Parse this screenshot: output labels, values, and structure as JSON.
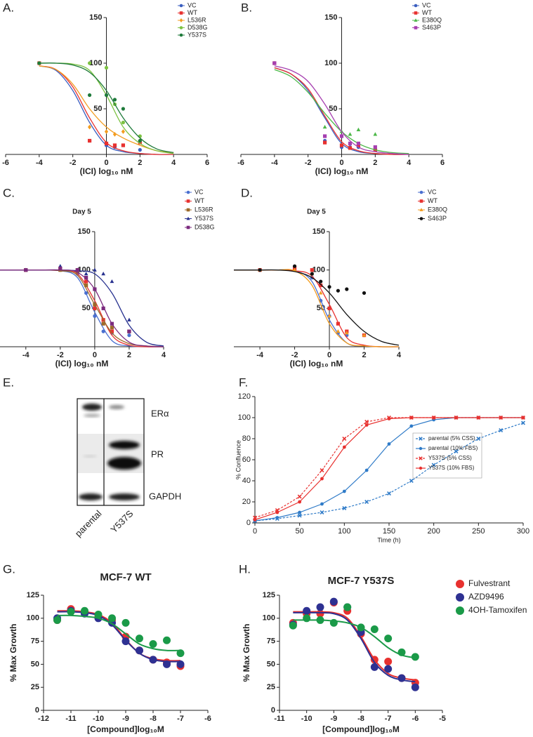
{
  "chart_data": [
    {
      "type": "scatter",
      "panel_label": "A.",
      "x_label": "(ICI) log₁₀ nM",
      "xlim": [
        -6,
        6
      ],
      "ylim": [
        0,
        150
      ],
      "xticks": [
        -6,
        -4,
        -2,
        0,
        2,
        4,
        6
      ],
      "yticks": [
        50,
        100,
        150
      ],
      "legend": "top-right",
      "x": [
        -4,
        -1,
        0,
        0.5,
        1,
        2
      ],
      "fit_x": [
        -4,
        -3,
        -2,
        -1,
        0,
        1,
        2,
        3,
        4
      ],
      "series": [
        {
          "name": "VC",
          "color": "#3b5fc0",
          "marker": "circle",
          "values": [
            100,
            15,
            10,
            8,
            10,
            5
          ],
          "fit": [
            97,
            92,
            70,
            35,
            10,
            3,
            1,
            0,
            0
          ]
        },
        {
          "name": "WT",
          "color": "#e8312f",
          "marker": "square",
          "values": [
            100,
            15,
            12,
            10,
            10,
            13
          ],
          "fit": [
            97,
            93,
            74,
            40,
            13,
            4,
            1,
            0,
            0
          ]
        },
        {
          "name": "L536R",
          "color": "#f39c1f",
          "marker": "diamond",
          "values": [
            100,
            30,
            25,
            22,
            25,
            15
          ],
          "fit": [
            97,
            93,
            77,
            50,
            30,
            18,
            10,
            4,
            2
          ]
        },
        {
          "name": "D538G",
          "color": "#7cc242",
          "marker": "circle",
          "values": [
            100,
            100,
            95,
            55,
            35,
            20
          ],
          "fit": [
            100,
            100,
            99,
            92,
            65,
            30,
            12,
            4,
            1
          ]
        },
        {
          "name": "Y537S",
          "color": "#1e7a3a",
          "marker": "circle",
          "values": [
            100,
            65,
            65,
            60,
            50,
            15
          ],
          "fit": [
            100,
            100,
            98,
            90,
            70,
            40,
            18,
            6,
            2
          ]
        }
      ]
    },
    {
      "type": "scatter",
      "panel_label": "B.",
      "x_label": "(ICI) log₁₀ nM",
      "xlim": [
        -6,
        6
      ],
      "ylim": [
        0,
        150
      ],
      "xticks": [
        -6,
        -4,
        -2,
        0,
        2,
        4,
        6
      ],
      "yticks": [
        50,
        100,
        150
      ],
      "legend": "top-right",
      "x": [
        -4,
        -1,
        0,
        0.5,
        1,
        2
      ],
      "fit_x": [
        -4,
        -3,
        -2,
        -1,
        0,
        1,
        2,
        3,
        4
      ],
      "series": [
        {
          "name": "VC",
          "color": "#3b5fc0",
          "marker": "circle",
          "values": [
            100,
            15,
            8,
            8,
            8,
            5
          ],
          "fit": [
            95,
            88,
            70,
            40,
            12,
            3,
            1,
            0,
            0
          ]
        },
        {
          "name": "WT",
          "color": "#e8312f",
          "marker": "square",
          "values": [
            100,
            13,
            10,
            7,
            10,
            5
          ],
          "fit": [
            95,
            88,
            72,
            42,
            14,
            4,
            1,
            0,
            0
          ]
        },
        {
          "name": "E380Q",
          "color": "#4cb848",
          "marker": "triangle",
          "values": [
            100,
            30,
            25,
            22,
            27,
            22
          ],
          "fit": [
            93,
            85,
            68,
            45,
            25,
            12,
            5,
            2,
            1
          ]
        },
        {
          "name": "S463P",
          "color": "#a63fb0",
          "marker": "square",
          "values": [
            100,
            20,
            20,
            12,
            12,
            8
          ],
          "fit": [
            97,
            92,
            80,
            55,
            25,
            8,
            3,
            1,
            0
          ]
        }
      ]
    },
    {
      "type": "scatter",
      "panel_label": "C.",
      "title": "Day 5",
      "x_label": "(ICI) log₁₀ nM",
      "xlim": [
        -5.5,
        4
      ],
      "ylim": [
        0,
        150
      ],
      "xticks": [
        -4,
        -2,
        0,
        2,
        4
      ],
      "yticks": [
        50,
        100,
        150
      ],
      "legend": "top-right",
      "x": [
        -4,
        -2,
        -1,
        -0.5,
        0,
        0.5,
        1,
        2
      ],
      "fit_x": [
        -5.5,
        -4,
        -3,
        -2,
        -1,
        0,
        1,
        2,
        3,
        4
      ],
      "series": [
        {
          "name": "VC",
          "color": "#4a6fd0",
          "marker": "circle",
          "values": [
            100,
            100,
            95,
            70,
            40,
            20,
            18,
            15
          ],
          "fit": [
            100,
            100,
            100,
            99,
            90,
            45,
            8,
            1,
            0,
            0
          ]
        },
        {
          "name": "WT",
          "color": "#e8312f",
          "marker": "square",
          "values": [
            100,
            102,
            100,
            85,
            50,
            35,
            20,
            20
          ],
          "fit": [
            100,
            100,
            100,
            99,
            95,
            60,
            15,
            2,
            0,
            0
          ]
        },
        {
          "name": "L536R",
          "color": "#9c6a2a",
          "marker": "square",
          "values": [
            100,
            100,
            98,
            80,
            55,
            30,
            25,
            20
          ],
          "fit": [
            100,
            100,
            100,
            99,
            93,
            55,
            18,
            4,
            1,
            0
          ]
        },
        {
          "name": "Y537S",
          "color": "#27318f",
          "marker": "triangle",
          "values": [
            100,
            105,
            100,
            95,
            100,
            95,
            85,
            35
          ],
          "fit": [
            100,
            100,
            100,
            100,
            99,
            95,
            70,
            28,
            6,
            1
          ]
        },
        {
          "name": "D538G",
          "color": "#7b2a7e",
          "marker": "square",
          "values": [
            100,
            102,
            100,
            90,
            75,
            50,
            30,
            20
          ],
          "fit": [
            100,
            100,
            100,
            100,
            97,
            75,
            30,
            6,
            1,
            0
          ]
        }
      ]
    },
    {
      "type": "scatter",
      "panel_label": "D.",
      "title": "Day 5",
      "x_label": "(ICI) log₁₀ nM",
      "xlim": [
        -5.5,
        4
      ],
      "ylim": [
        0,
        150
      ],
      "xticks": [
        -4,
        -2,
        0,
        2,
        4
      ],
      "yticks": [
        50,
        100,
        150
      ],
      "legend": "top-right",
      "x": [
        -4,
        -2,
        -1,
        -0.5,
        0,
        0.5,
        1,
        2
      ],
      "fit_x": [
        -5.5,
        -4,
        -3,
        -2,
        -1,
        0,
        1,
        2,
        3,
        4
      ],
      "series": [
        {
          "name": "VC",
          "color": "#4a6fd0",
          "marker": "circle",
          "values": [
            100,
            100,
            90,
            60,
            40,
            18,
            15,
            15
          ],
          "fit": [
            100,
            100,
            100,
            99,
            85,
            35,
            5,
            1,
            0,
            0
          ]
        },
        {
          "name": "WT",
          "color": "#e8312f",
          "marker": "square",
          "values": [
            100,
            102,
            100,
            80,
            50,
            30,
            20,
            15
          ],
          "fit": [
            100,
            100,
            100,
            99,
            92,
            55,
            12,
            2,
            0,
            0
          ]
        },
        {
          "name": "E380Q",
          "color": "#f39c1f",
          "marker": "triangle",
          "values": [
            100,
            100,
            95,
            70,
            40,
            20,
            18,
            15
          ],
          "fit": [
            100,
            100,
            100,
            99,
            80,
            30,
            5,
            1,
            0,
            0
          ]
        },
        {
          "name": "S463P",
          "color": "#111111",
          "marker": "circle",
          "values": [
            100,
            105,
            95,
            85,
            78,
            73,
            75,
            70
          ],
          "fit": [
            100,
            100,
            100,
            98,
            90,
            70,
            42,
            20,
            7,
            2
          ]
        }
      ]
    },
    {
      "type": "line",
      "panel_label": "F.",
      "x_label": "Time (h)",
      "y_label": "% Confluence",
      "xlim": [
        0,
        300
      ],
      "ylim": [
        0,
        120
      ],
      "xticks": [
        0,
        50,
        100,
        150,
        200,
        250,
        300
      ],
      "yticks": [
        0,
        20,
        40,
        60,
        80,
        100,
        120
      ],
      "legend": "right",
      "x": [
        0,
        25,
        50,
        75,
        100,
        125,
        150,
        175,
        200,
        225,
        250,
        275,
        300
      ],
      "series": [
        {
          "name": "parental (5% CSS)",
          "color": "#2f7bc8",
          "marker": "x",
          "dashed": true,
          "values": [
            2,
            4,
            7,
            10,
            14,
            20,
            28,
            40,
            55,
            68,
            80,
            88,
            95
          ]
        },
        {
          "name": "parental (10% FBS)",
          "color": "#2f7bc8",
          "marker": "circle",
          "dashed": false,
          "values": [
            2,
            5,
            10,
            18,
            30,
            50,
            75,
            92,
            98,
            100,
            100,
            100,
            100
          ]
        },
        {
          "name": "Y537S (5% CSS)",
          "color": "#e8312f",
          "marker": "x",
          "dashed": true,
          "values": [
            5,
            12,
            25,
            50,
            80,
            96,
            100,
            100,
            100,
            100,
            100,
            100,
            100
          ]
        },
        {
          "name": "Y537S (10% FBS)",
          "color": "#e8312f",
          "marker": "circle",
          "dashed": false,
          "values": [
            3,
            10,
            20,
            42,
            72,
            93,
            99,
            100,
            100,
            100,
            100,
            100,
            100
          ]
        }
      ]
    },
    {
      "type": "scatter",
      "panel_label": "G.",
      "title": "MCF-7 WT",
      "x_label": "[Compound]log₁₀M",
      "y_label": "% Max Growth",
      "xlim": [
        -12,
        -6
      ],
      "ylim": [
        0,
        125
      ],
      "xticks": [
        -12,
        -11,
        -10,
        -9,
        -8,
        -7,
        -6
      ],
      "yticks": [
        0,
        25,
        50,
        75,
        100,
        125
      ],
      "x": [
        -11.5,
        -11,
        -10.5,
        -10,
        -9.5,
        -9,
        -8.5,
        -8,
        -7.5,
        -7
      ],
      "fit_x": [
        -11.5,
        -11,
        -10.5,
        -10,
        -9.5,
        -9,
        -8.5,
        -8,
        -7.5,
        -7
      ],
      "series": [
        {
          "color": "#e8312f",
          "marker": "circle",
          "values": [
            98,
            110,
            106,
            102,
            98,
            80,
            65,
            55,
            52,
            48
          ],
          "fit": [
            108,
            108,
            107,
            104,
            95,
            77,
            62,
            56,
            54,
            54
          ]
        },
        {
          "color": "#2e3192",
          "marker": "circle",
          "values": [
            100,
            108,
            105,
            100,
            95,
            75,
            65,
            55,
            50,
            50
          ],
          "fit": [
            107,
            107,
            106,
            103,
            93,
            76,
            62,
            55,
            53,
            53
          ]
        },
        {
          "color": "#1a9a48",
          "marker": "circle",
          "values": [
            98,
            107,
            108,
            104,
            100,
            95,
            78,
            72,
            76,
            62
          ],
          "fit": [
            103,
            103,
            102,
            100,
            94,
            83,
            72,
            67,
            65,
            65
          ]
        }
      ]
    },
    {
      "type": "scatter",
      "panel_label": "H.",
      "title": "MCF-7 Y537S",
      "x_label": "[Compound]log₁₀M",
      "y_label": "% Max Growth",
      "xlim": [
        -11,
        -5
      ],
      "ylim": [
        0,
        125
      ],
      "xticks": [
        -11,
        -10,
        -9,
        -8,
        -7,
        -6,
        -5
      ],
      "yticks": [
        0,
        25,
        50,
        75,
        100,
        125
      ],
      "legend": "right",
      "x": [
        -10.5,
        -10,
        -9.5,
        -9,
        -8.5,
        -8,
        -7.5,
        -7,
        -6.5,
        -6
      ],
      "fit_x": [
        -10.5,
        -10,
        -9.5,
        -9,
        -8.5,
        -8,
        -7.5,
        -7,
        -6.5,
        -6
      ],
      "series": [
        {
          "name": "Fulvestrant",
          "color": "#e8312f",
          "marker": "circle",
          "values": [
            95,
            105,
            105,
            117,
            108,
            83,
            55,
            53,
            35,
            30
          ],
          "fit": [
            107,
            107,
            107,
            106,
            100,
            80,
            55,
            40,
            35,
            33
          ]
        },
        {
          "name": "AZD9496",
          "color": "#2e3192",
          "marker": "circle",
          "values": [
            93,
            108,
            112,
            118,
            112,
            85,
            47,
            45,
            35,
            25
          ],
          "fit": [
            106,
            106,
            106,
            105,
            98,
            78,
            52,
            38,
            33,
            31
          ]
        },
        {
          "name": "4OH-Tamoxifen",
          "color": "#1a9a48",
          "marker": "circle",
          "values": [
            92,
            100,
            98,
            95,
            112,
            90,
            88,
            78,
            63,
            58
          ],
          "fit": [
            98,
            98,
            98,
            97,
            95,
            90,
            80,
            68,
            60,
            57
          ]
        }
      ]
    }
  ],
  "blot": {
    "panel_label": "E.",
    "bands": [
      "ERα",
      "PR",
      "GAPDH"
    ],
    "lanes": [
      "parental",
      "Y537S"
    ]
  }
}
